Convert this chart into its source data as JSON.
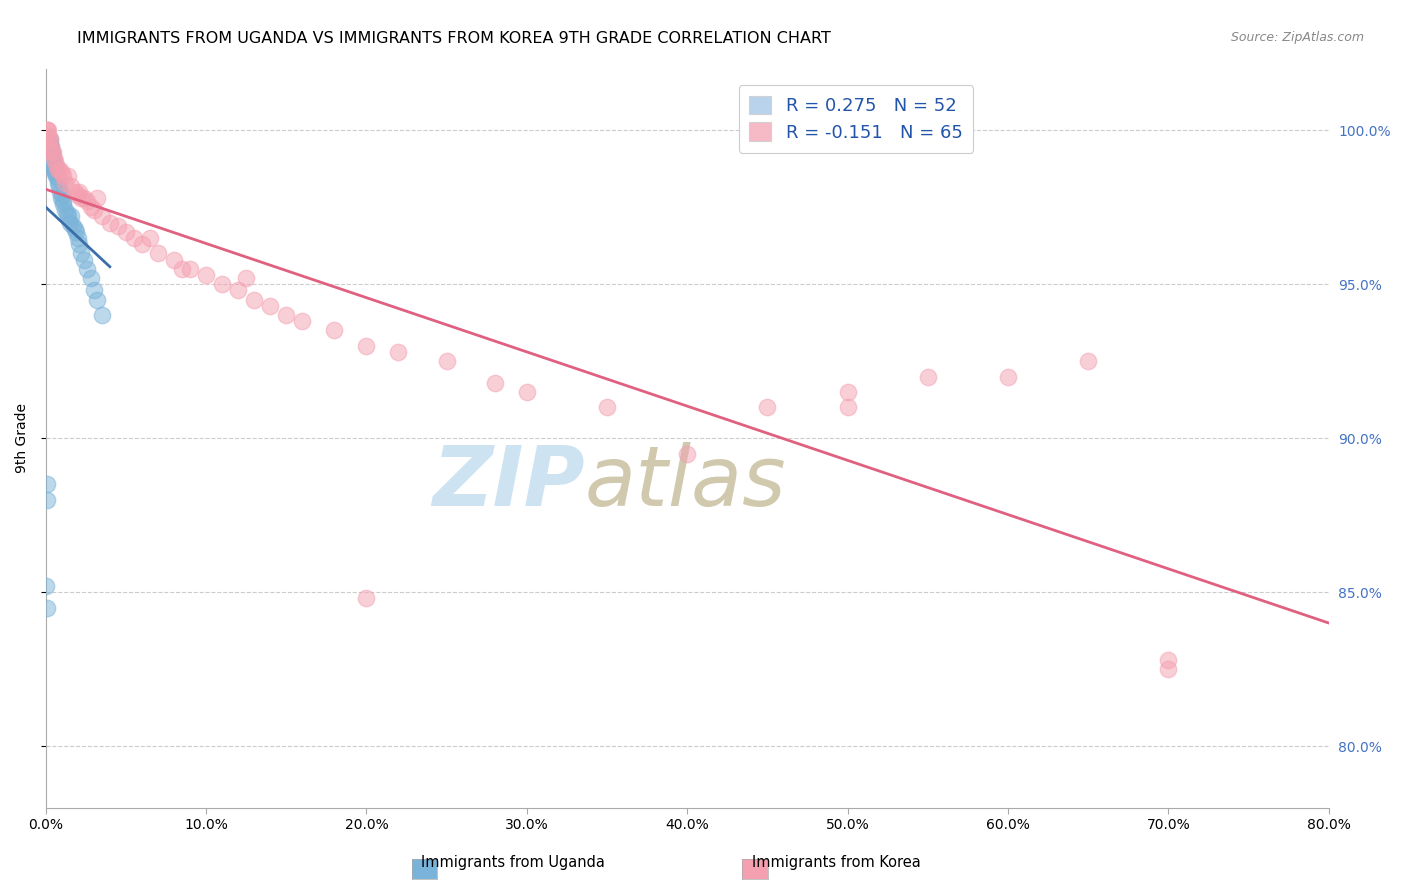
{
  "title": "IMMIGRANTS FROM UGANDA VS IMMIGRANTS FROM KOREA 9TH GRADE CORRELATION CHART",
  "source": "Source: ZipAtlas.com",
  "ylabel": "9th Grade",
  "xtick_labels": [
    "0.0%",
    "10.0%",
    "20.0%",
    "30.0%",
    "40.0%",
    "50.0%",
    "60.0%",
    "70.0%",
    "80.0%"
  ],
  "xtick_vals": [
    0,
    10,
    20,
    30,
    40,
    50,
    60,
    70,
    80
  ],
  "ytick_labels": [
    "80.0%",
    "85.0%",
    "90.0%",
    "95.0%",
    "100.0%"
  ],
  "ytick_vals": [
    80,
    85,
    90,
    95,
    100
  ],
  "xlim": [
    0,
    80
  ],
  "ylim": [
    78,
    102
  ],
  "legend_entries": [
    {
      "label": "R = 0.275   N = 52",
      "color": "#a8c8e8"
    },
    {
      "label": "R = -0.151   N = 65",
      "color": "#f4a8b8"
    }
  ],
  "uganda_color": "#7ab3d9",
  "korea_color": "#f4a0b0",
  "uganda_line_color": "#3a6faa",
  "korea_line_color": "#e06080",
  "background_color": "#ffffff",
  "watermark_zip": "ZIP",
  "watermark_atlas": "atlas",
  "watermark_color_zip": "#b8d8f0",
  "watermark_color_atlas": "#c8c8a8",
  "title_fontsize": 11.5,
  "axis_label_fontsize": 10,
  "tick_fontsize": 10,
  "uganda_x": [
    0.05,
    0.08,
    0.1,
    0.12,
    0.15,
    0.18,
    0.2,
    0.22,
    0.25,
    0.28,
    0.3,
    0.33,
    0.35,
    0.38,
    0.4,
    0.42,
    0.45,
    0.48,
    0.5,
    0.52,
    0.55,
    0.58,
    0.6,
    0.65,
    0.7,
    0.75,
    0.8,
    0.85,
    0.9,
    0.95,
    1.0,
    1.05,
    1.1,
    1.2,
    1.3,
    1.4,
    1.5,
    1.6,
    1.7,
    1.8,
    1.9,
    2.0,
    2.1,
    2.2,
    2.4,
    2.6,
    2.8,
    3.0,
    3.2,
    3.5,
    0.06,
    0.09
  ],
  "uganda_y": [
    85.2,
    84.5,
    99.5,
    99.3,
    99.1,
    99.4,
    99.6,
    99.2,
    99.7,
    99.4,
    99.5,
    99.3,
    99.5,
    99.1,
    99.3,
    98.9,
    99.0,
    98.8,
    98.9,
    98.7,
    98.8,
    98.6,
    98.8,
    98.5,
    98.6,
    98.4,
    98.3,
    98.2,
    98.0,
    97.8,
    97.9,
    97.7,
    97.6,
    97.4,
    97.3,
    97.2,
    97.0,
    97.2,
    96.9,
    96.8,
    96.7,
    96.5,
    96.3,
    96.0,
    95.8,
    95.5,
    95.2,
    94.8,
    94.5,
    94.0,
    88.5,
    88.0
  ],
  "korea_x": [
    0.1,
    0.15,
    0.2,
    0.25,
    0.3,
    0.35,
    0.4,
    0.45,
    0.5,
    0.6,
    0.7,
    0.8,
    0.9,
    1.0,
    1.1,
    1.2,
    1.4,
    1.6,
    1.8,
    2.0,
    2.2,
    2.4,
    2.6,
    2.8,
    3.0,
    3.5,
    4.0,
    4.5,
    5.0,
    5.5,
    6.0,
    7.0,
    8.0,
    9.0,
    10.0,
    11.0,
    12.0,
    13.0,
    14.0,
    15.0,
    16.0,
    18.0,
    20.0,
    22.0,
    25.0,
    28.0,
    30.0,
    35.0,
    40.0,
    45.0,
    50.0,
    55.0,
    60.0,
    65.0,
    70.0,
    0.08,
    0.12,
    2.1,
    3.2,
    6.5,
    8.5,
    12.5,
    20.0,
    50.0,
    70.0
  ],
  "korea_y": [
    100.0,
    99.8,
    99.7,
    99.7,
    99.5,
    99.4,
    99.3,
    99.3,
    99.1,
    99.0,
    98.8,
    98.7,
    98.7,
    98.6,
    98.5,
    98.3,
    98.5,
    98.2,
    98.0,
    97.9,
    97.8,
    97.8,
    97.7,
    97.5,
    97.4,
    97.2,
    97.0,
    96.9,
    96.7,
    96.5,
    96.3,
    96.0,
    95.8,
    95.5,
    95.3,
    95.0,
    94.8,
    94.5,
    94.3,
    94.0,
    93.8,
    93.5,
    93.0,
    92.8,
    92.5,
    91.8,
    91.5,
    91.0,
    89.5,
    91.0,
    91.5,
    92.0,
    92.0,
    92.5,
    82.5,
    100.0,
    100.0,
    98.0,
    97.8,
    96.5,
    95.5,
    95.2,
    84.8,
    91.0,
    82.8
  ]
}
